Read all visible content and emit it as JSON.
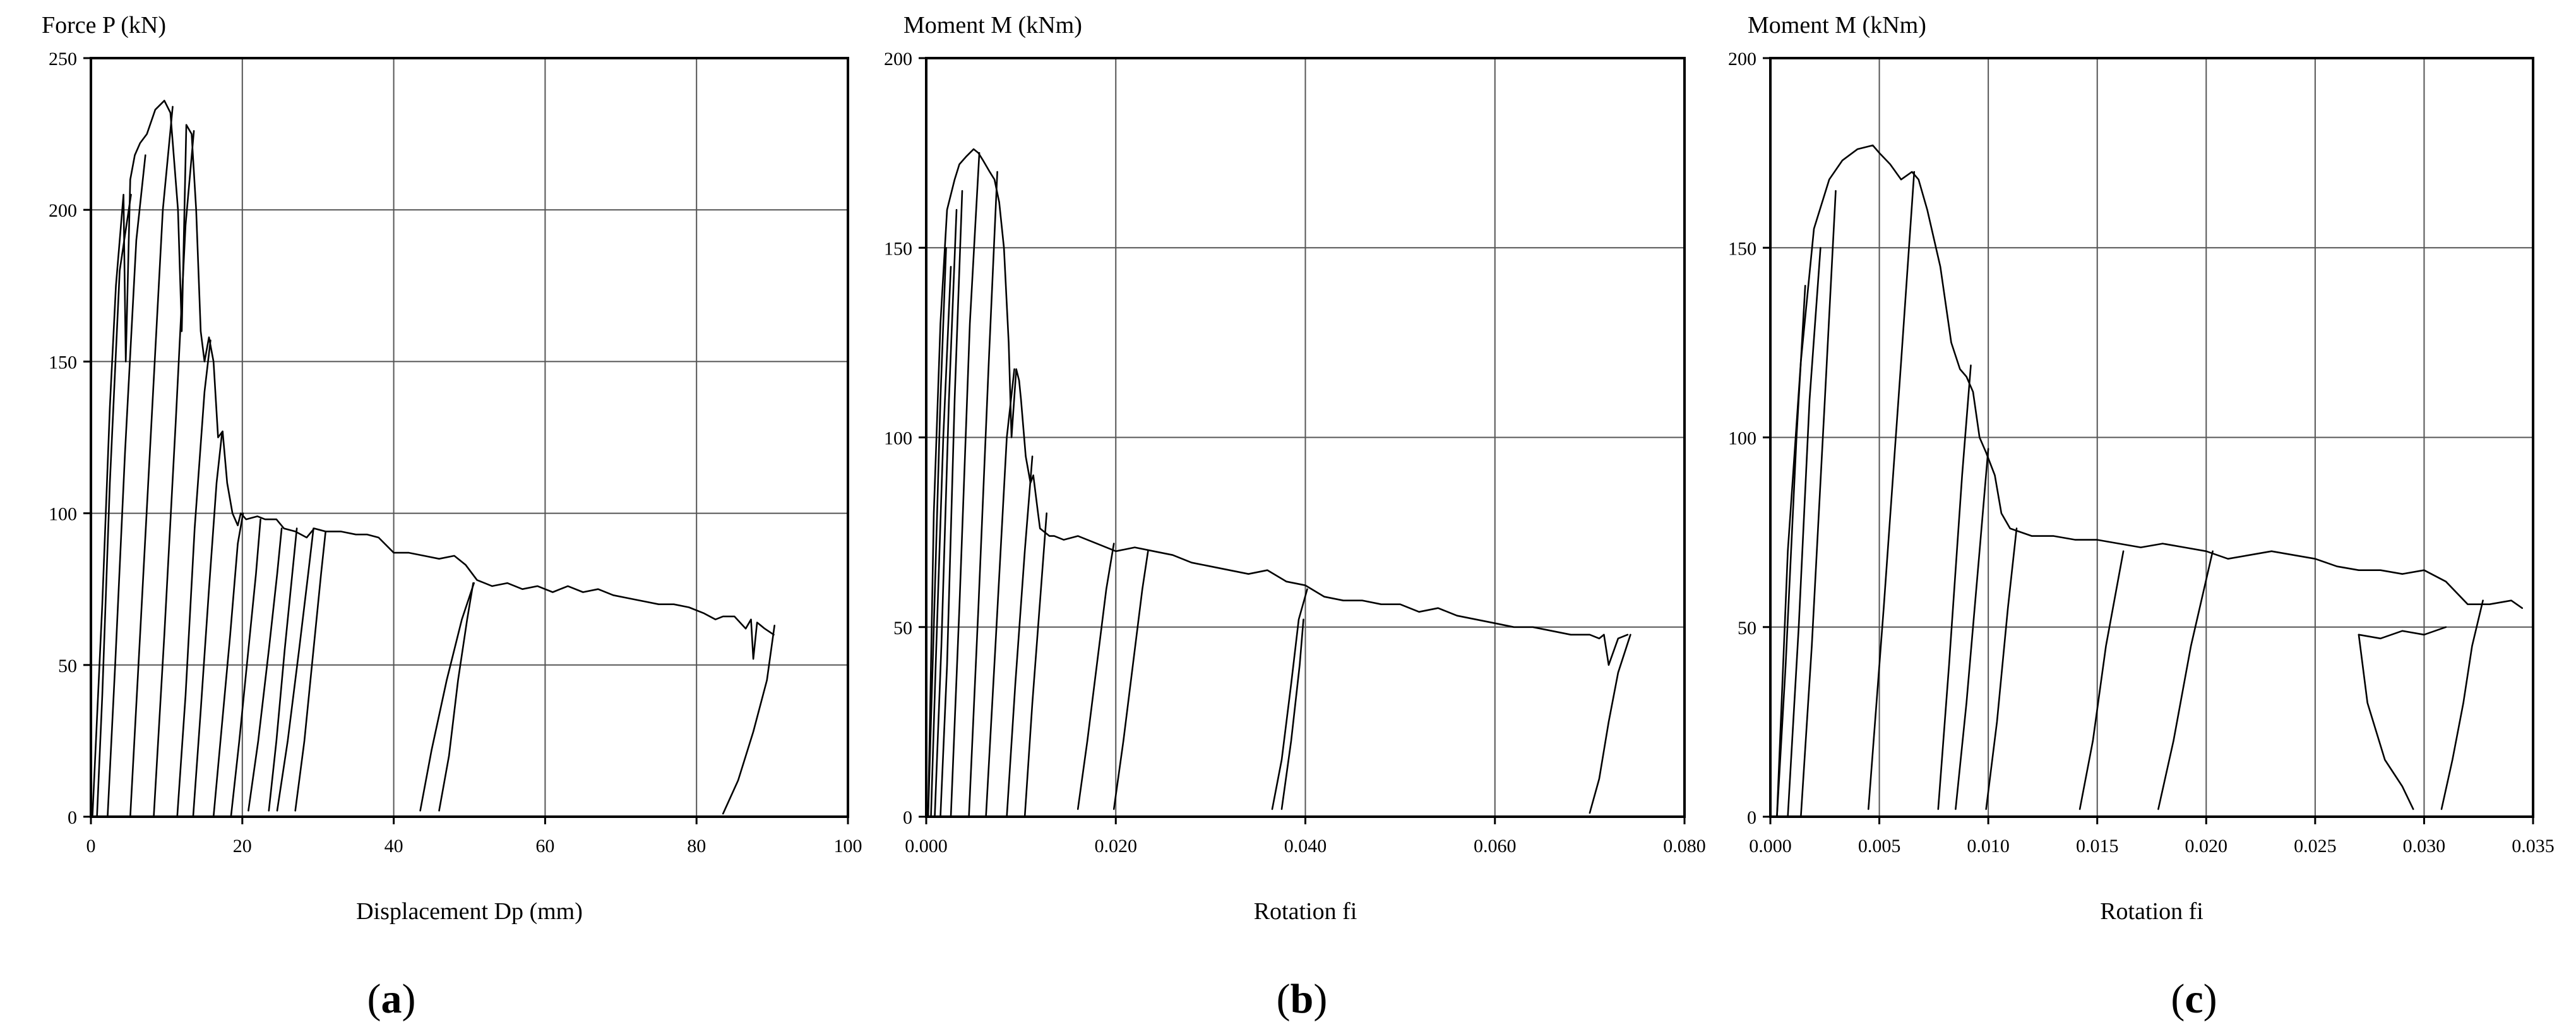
{
  "chart_data": [
    {
      "type": "line",
      "panel_label": "(a)",
      "panel_letter": "a",
      "ylabel": "Force P (kN)",
      "xlabel": "Displacement Dp (mm)",
      "xlim": [
        0,
        100
      ],
      "ylim": [
        0,
        250
      ],
      "x_ticks": [
        0,
        20,
        40,
        60,
        80,
        100
      ],
      "x_tick_labels": [
        "0",
        "20",
        "40",
        "60",
        "80",
        "100"
      ],
      "y_ticks": [
        0,
        50,
        100,
        150,
        200,
        250
      ],
      "y_tick_labels": [
        "0",
        "50",
        "100",
        "150",
        "200",
        "250"
      ],
      "grid": true,
      "series": [
        {
          "x": [
            0.2,
            1.5,
            2.5,
            3.3,
            3.9,
            4.3,
            4.6,
            5.2,
            5.8,
            6.5,
            7.4,
            8.5,
            9.7,
            10.5,
            11.5,
            12.0,
            12.6,
            13.3,
            13.9,
            14.5,
            15.0,
            15.6,
            16.2,
            16.8,
            17.4,
            18.0,
            18.7,
            19.4,
            19.8,
            20.5,
            22,
            23,
            24.5,
            25.5,
            27,
            28.5,
            29.5,
            31,
            33,
            35,
            36.5,
            38,
            40,
            42,
            44,
            46,
            48,
            49.5,
            51,
            53,
            55,
            57,
            59,
            61,
            63,
            65,
            67,
            69,
            71,
            73,
            75,
            77,
            79,
            81,
            82.5,
            83.5,
            85,
            86.5,
            87.2,
            87.5,
            88,
            88.5,
            89,
            90.2
          ],
          "y": [
            0,
            70,
            135,
            175,
            193,
            205,
            150,
            210,
            218,
            222,
            225,
            233,
            236,
            232,
            200,
            160,
            228,
            225,
            200,
            160,
            150,
            158,
            150,
            125,
            127,
            110,
            100,
            96,
            100,
            98,
            99,
            98,
            98,
            95,
            94,
            92,
            95,
            94,
            94,
            93,
            93,
            92,
            87,
            87,
            86,
            85,
            86,
            83,
            78,
            76,
            77,
            75,
            76,
            74,
            76,
            74,
            75,
            73,
            72,
            71,
            70,
            70,
            69,
            67,
            65,
            66,
            66,
            62,
            65,
            52,
            64,
            63,
            62,
            60
          ]
        },
        {
          "x": [
            0.8,
            1.5,
            2.5,
            3.8,
            5.3
          ],
          "y": [
            0,
            40,
            110,
            180,
            205
          ]
        },
        {
          "x": [
            2.2,
            3.2,
            4.5,
            6.0,
            7.2
          ],
          "y": [
            0,
            50,
            120,
            190,
            218
          ]
        },
        {
          "x": [
            5.2,
            6.5,
            8.0,
            9.5,
            10.8
          ],
          "y": [
            0,
            60,
            130,
            200,
            234
          ]
        },
        {
          "x": [
            8.3,
            9.7,
            11.2,
            12.5,
            13.6
          ],
          "y": [
            0,
            60,
            130,
            195,
            226
          ]
        },
        {
          "x": [
            11.4,
            12.5,
            13.7,
            15.0,
            15.8
          ],
          "y": [
            0,
            40,
            95,
            140,
            157
          ]
        },
        {
          "x": [
            13.5,
            14.5,
            15.6,
            16.6,
            17.3
          ],
          "y": [
            0,
            35,
            75,
            110,
            126
          ]
        },
        {
          "x": [
            16.2,
            17.3,
            18.4,
            19.4,
            20.1
          ],
          "y": [
            0,
            30,
            60,
            90,
            100
          ]
        },
        {
          "x": [
            18.5,
            19.6,
            20.8,
            21.8,
            22.4
          ],
          "y": [
            0,
            25,
            55,
            80,
            98
          ]
        },
        {
          "x": [
            20.8,
            22.1,
            23.5,
            24.6,
            25.2
          ],
          "y": [
            2,
            25,
            55,
            80,
            95
          ]
        },
        {
          "x": [
            23.5,
            24.5,
            25.6,
            26.6,
            27.2
          ],
          "y": [
            2,
            25,
            55,
            80,
            95
          ]
        },
        {
          "x": [
            24.6,
            26.0,
            27.5,
            28.7,
            29.4
          ],
          "y": [
            2,
            25,
            55,
            80,
            95
          ]
        },
        {
          "x": [
            27.0,
            28.2,
            29.4,
            30.4,
            31.0
          ],
          "y": [
            2,
            25,
            55,
            80,
            94
          ]
        },
        {
          "x": [
            43.5,
            45.0,
            47.0,
            49.0,
            50.6
          ],
          "y": [
            2,
            22,
            45,
            65,
            77
          ]
        },
        {
          "x": [
            46.0,
            47.3,
            48.5,
            49.7,
            50.5
          ],
          "y": [
            2,
            20,
            45,
            65,
            77
          ]
        },
        {
          "x": [
            83.5,
            85.5,
            87.5,
            89.3,
            90.3
          ],
          "y": [
            1,
            12,
            28,
            45,
            63
          ]
        }
      ]
    },
    {
      "type": "line",
      "panel_label": "(b)",
      "panel_letter": "b",
      "ylabel": "Moment M (kNm)",
      "xlabel": "Rotation fi",
      "xlim": [
        0,
        0.08
      ],
      "ylim": [
        0,
        200
      ],
      "x_ticks": [
        0,
        0.02,
        0.04,
        0.06,
        0.08
      ],
      "x_tick_labels": [
        "0.000",
        "0.020",
        "0.040",
        "0.060",
        "0.080"
      ],
      "y_ticks": [
        0,
        50,
        100,
        150,
        200
      ],
      "y_tick_labels": [
        "0",
        "50",
        "100",
        "150",
        "200"
      ],
      "grid": true,
      "series": [
        {
          "x": [
            0.0002,
            0.0008,
            0.0015,
            0.0022,
            0.003,
            0.0035,
            0.0042,
            0.005,
            0.0055,
            0.006,
            0.0067,
            0.0072,
            0.0077,
            0.0082,
            0.0087,
            0.009,
            0.0095,
            0.0098,
            0.01,
            0.0105,
            0.011,
            0.0113,
            0.0118,
            0.012,
            0.0125,
            0.013,
            0.0135,
            0.0145,
            0.016,
            0.018,
            0.02,
            0.022,
            0.024,
            0.026,
            0.028,
            0.03,
            0.032,
            0.034,
            0.036,
            0.038,
            0.04,
            0.042,
            0.044,
            0.046,
            0.048,
            0.05,
            0.052,
            0.054,
            0.056,
            0.058,
            0.06,
            0.062,
            0.064,
            0.066,
            0.068,
            0.07,
            0.071,
            0.0715,
            0.072,
            0.073,
            0.074
          ],
          "y": [
            0,
            80,
            130,
            160,
            168,
            172,
            174,
            176,
            175,
            173,
            170,
            168,
            162,
            150,
            125,
            100,
            118,
            115,
            110,
            95,
            88,
            90,
            80,
            76,
            75,
            74,
            74,
            73,
            74,
            72,
            70,
            71,
            70,
            69,
            67,
            66,
            65,
            64,
            65,
            62,
            61,
            58,
            57,
            57,
            56,
            56,
            54,
            55,
            53,
            52,
            51,
            50,
            50,
            49,
            48,
            48,
            47,
            48,
            40,
            47,
            48
          ]
        },
        {
          "x": [
            0.0002,
            0.0008,
            0.0015,
            0.0021
          ],
          "y": [
            0,
            50,
            110,
            150
          ]
        },
        {
          "x": [
            0.0005,
            0.001,
            0.0018,
            0.0026
          ],
          "y": [
            0,
            40,
            100,
            145
          ]
        },
        {
          "x": [
            0.0009,
            0.0016,
            0.0024,
            0.0032
          ],
          "y": [
            0,
            45,
            110,
            160
          ]
        },
        {
          "x": [
            0.0015,
            0.0022,
            0.003,
            0.0038
          ],
          "y": [
            0,
            40,
            110,
            165
          ]
        },
        {
          "x": [
            0.0026,
            0.0035,
            0.0046,
            0.0056
          ],
          "y": [
            0,
            55,
            130,
            175
          ]
        },
        {
          "x": [
            0.0045,
            0.0055,
            0.0066,
            0.0075
          ],
          "y": [
            0,
            55,
            120,
            170
          ]
        },
        {
          "x": [
            0.0063,
            0.0073,
            0.0085,
            0.0093
          ],
          "y": [
            0,
            45,
            100,
            118
          ]
        },
        {
          "x": [
            0.0085,
            0.0094,
            0.0104,
            0.0112
          ],
          "y": [
            0,
            35,
            70,
            95
          ]
        },
        {
          "x": [
            0.0104,
            0.0112,
            0.0121,
            0.0127
          ],
          "y": [
            0,
            30,
            60,
            80
          ]
        },
        {
          "x": [
            0.016,
            0.017,
            0.018,
            0.019,
            0.0198
          ],
          "y": [
            2,
            20,
            40,
            60,
            72
          ]
        },
        {
          "x": [
            0.0198,
            0.0208,
            0.0218,
            0.0228,
            0.0234
          ],
          "y": [
            2,
            20,
            40,
            60,
            70
          ]
        },
        {
          "x": [
            0.0365,
            0.0375,
            0.0385,
            0.0393,
            0.0402
          ],
          "y": [
            2,
            15,
            35,
            52,
            60
          ]
        },
        {
          "x": [
            0.0375,
            0.0385,
            0.0394,
            0.0398
          ],
          "y": [
            2,
            20,
            40,
            52
          ]
        },
        {
          "x": [
            0.07,
            0.071,
            0.072,
            0.073,
            0.0743
          ],
          "y": [
            1,
            10,
            25,
            38,
            48
          ]
        }
      ]
    },
    {
      "type": "line",
      "panel_label": "(c)",
      "panel_letter": "c",
      "ylabel": "Moment M (kNm)",
      "xlabel": "Rotation fi",
      "xlim": [
        0,
        0.035
      ],
      "ylim": [
        0,
        200
      ],
      "x_ticks": [
        0,
        0.005,
        0.01,
        0.015,
        0.02,
        0.025,
        0.03,
        0.035
      ],
      "x_tick_labels": [
        "0.000",
        "0.005",
        "0.010",
        "0.015",
        "0.020",
        "0.025",
        "0.030",
        "0.035"
      ],
      "y_ticks": [
        0,
        50,
        100,
        150,
        200
      ],
      "y_tick_labels": [
        "0",
        "50",
        "100",
        "150",
        "200"
      ],
      "grid": true,
      "series": [
        {
          "x": [
            0.0003,
            0.0008,
            0.0014,
            0.002,
            0.0027,
            0.0033,
            0.004,
            0.0047,
            0.005,
            0.0055,
            0.006,
            0.0065,
            0.0068,
            0.0072,
            0.0078,
            0.0083,
            0.0087,
            0.009,
            0.0093,
            0.0096,
            0.0099,
            0.0103,
            0.0106,
            0.011,
            0.0115,
            0.012,
            0.013,
            0.014,
            0.015,
            0.016,
            0.017,
            0.018,
            0.019,
            0.02,
            0.021,
            0.022,
            0.023,
            0.024,
            0.025,
            0.026,
            0.027,
            0.028,
            0.029,
            0.03,
            0.031,
            0.032,
            0.033,
            0.034,
            0.0345
          ],
          "y": [
            0,
            70,
            120,
            155,
            168,
            173,
            176,
            177,
            175,
            172,
            168,
            170,
            168,
            160,
            145,
            125,
            118,
            116,
            112,
            100,
            96,
            90,
            80,
            76,
            75,
            74,
            74,
            73,
            73,
            72,
            71,
            72,
            71,
            70,
            68,
            69,
            70,
            69,
            68,
            66,
            65,
            65,
            64,
            65,
            62,
            56,
            56,
            57,
            55
          ]
        },
        {
          "x": [
            0.0003,
            0.0007,
            0.0012,
            0.0016
          ],
          "y": [
            0,
            40,
            100,
            140
          ]
        },
        {
          "x": [
            0.0008,
            0.0013,
            0.0018,
            0.0023
          ],
          "y": [
            0,
            50,
            110,
            150
          ]
        },
        {
          "x": [
            0.0014,
            0.0019,
            0.0025,
            0.003
          ],
          "y": [
            0,
            45,
            110,
            165
          ]
        },
        {
          "x": [
            0.0045,
            0.0052,
            0.006,
            0.0066
          ],
          "y": [
            2,
            55,
            120,
            170
          ]
        },
        {
          "x": [
            0.0077,
            0.0082,
            0.0088,
            0.0092
          ],
          "y": [
            2,
            40,
            90,
            119
          ]
        },
        {
          "x": [
            0.0085,
            0.009,
            0.0096,
            0.01
          ],
          "y": [
            2,
            30,
            70,
            97
          ]
        },
        {
          "x": [
            0.0099,
            0.0104,
            0.0109,
            0.0113
          ],
          "y": [
            2,
            25,
            55,
            76
          ]
        },
        {
          "x": [
            0.0142,
            0.0148,
            0.0154,
            0.0162
          ],
          "y": [
            2,
            20,
            45,
            70
          ]
        },
        {
          "x": [
            0.0178,
            0.0185,
            0.0193,
            0.0203
          ],
          "y": [
            2,
            20,
            45,
            70
          ]
        },
        {
          "x": [
            0.027,
            0.0274,
            0.0282,
            0.029,
            0.0295
          ],
          "y": [
            48,
            30,
            15,
            8,
            2
          ]
        },
        {
          "x": [
            0.027,
            0.028,
            0.029,
            0.03,
            0.031
          ],
          "y": [
            48,
            47,
            49,
            48,
            50
          ]
        },
        {
          "x": [
            0.0308,
            0.0313,
            0.0318,
            0.0322,
            0.0327
          ],
          "y": [
            2,
            15,
            30,
            45,
            57
          ]
        }
      ]
    }
  ]
}
